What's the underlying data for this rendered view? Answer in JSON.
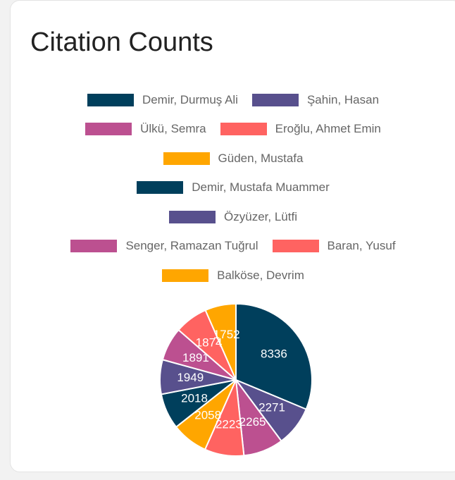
{
  "chart_data": {
    "type": "pie",
    "title": "Citation Counts",
    "categories": [
      "Demir, Durmuş Ali",
      "Şahin, Hasan",
      "Ülkü, Semra",
      "Eroğlu, Ahmet Emin",
      "Güden, Mustafa",
      "Demir, Mustafa Muammer",
      "Özyüzer, Lütfi",
      "Senger, Ramazan Tuğrul",
      "Baran, Yusuf",
      "Balköse, Devrim"
    ],
    "values": [
      8336,
      2271,
      2265,
      2223,
      2058,
      2018,
      1949,
      1891,
      1874,
      1752
    ],
    "colors": [
      "#003f5c",
      "#58508d",
      "#bc5090",
      "#ff6361",
      "#ffa600",
      "#003f5c",
      "#58508d",
      "#bc5090",
      "#ff6361",
      "#ffa600"
    ]
  }
}
